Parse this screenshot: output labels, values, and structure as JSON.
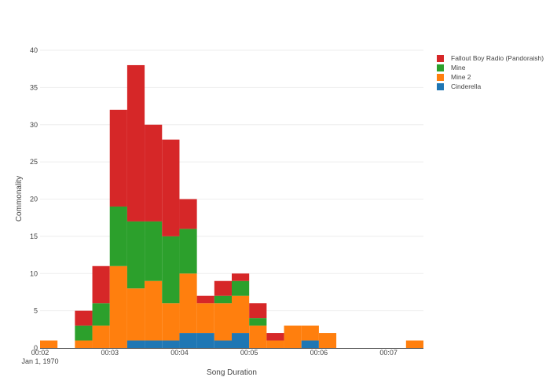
{
  "chart_data": {
    "type": "bar",
    "barmode": "stack",
    "title": "",
    "xlabel": "Song Duration",
    "ylabel": "Commonality",
    "ylim": [
      0,
      40
    ],
    "yticks": [
      0,
      5,
      10,
      15,
      20,
      25,
      30,
      35,
      40
    ],
    "xticks": [
      "00:02",
      "00:03",
      "00:04",
      "00:05",
      "00:06",
      "00:07"
    ],
    "x_sublabel": "Jan 1, 1970",
    "x_range": [
      "00:02",
      "00:07:30"
    ],
    "bin_width_seconds": 15,
    "categories": [
      "00:02:00",
      "00:02:15",
      "00:02:30",
      "00:02:45",
      "00:03:00",
      "00:03:15",
      "00:03:30",
      "00:03:45",
      "00:04:00",
      "00:04:15",
      "00:04:30",
      "00:04:45",
      "00:05:00",
      "00:05:15",
      "00:05:30",
      "00:05:45",
      "00:06:00",
      "00:06:15",
      "00:06:30",
      "00:06:45",
      "00:07:00",
      "00:07:15"
    ],
    "series": [
      {
        "name": "Cinderella",
        "color": "#1f77b4",
        "values": [
          0,
          0,
          0,
          0,
          0,
          1,
          1,
          1,
          2,
          2,
          1,
          2,
          0,
          0,
          0,
          1,
          0,
          0,
          0,
          0,
          0,
          0
        ]
      },
      {
        "name": "Mine 2",
        "color": "#ff7f0e",
        "values": [
          1,
          0,
          1,
          3,
          11,
          7,
          8,
          5,
          8,
          4,
          5,
          5,
          3,
          1,
          3,
          2,
          2,
          0,
          0,
          0,
          0,
          1
        ]
      },
      {
        "name": "Mine",
        "color": "#2ca02c",
        "values": [
          0,
          0,
          2,
          3,
          8,
          9,
          8,
          9,
          6,
          0,
          1,
          2,
          1,
          0,
          0,
          0,
          0,
          0,
          0,
          0,
          0,
          0
        ]
      },
      {
        "name": "Fallout Boy Radio (Pandoraish)",
        "color": "#d62728",
        "values": [
          0,
          0,
          2,
          5,
          13,
          21,
          13,
          13,
          4,
          1,
          2,
          1,
          2,
          1,
          0,
          0,
          0,
          0,
          0,
          0,
          0,
          0
        ]
      }
    ],
    "grid": true,
    "legend_position": "right"
  },
  "legend": {
    "items": [
      {
        "label": "Fallout Boy Radio (Pandoraish)",
        "color": "#d62728"
      },
      {
        "label": "Mine",
        "color": "#2ca02c"
      },
      {
        "label": "Mine 2",
        "color": "#ff7f0e"
      },
      {
        "label": "Cinderella",
        "color": "#1f77b4"
      }
    ]
  }
}
